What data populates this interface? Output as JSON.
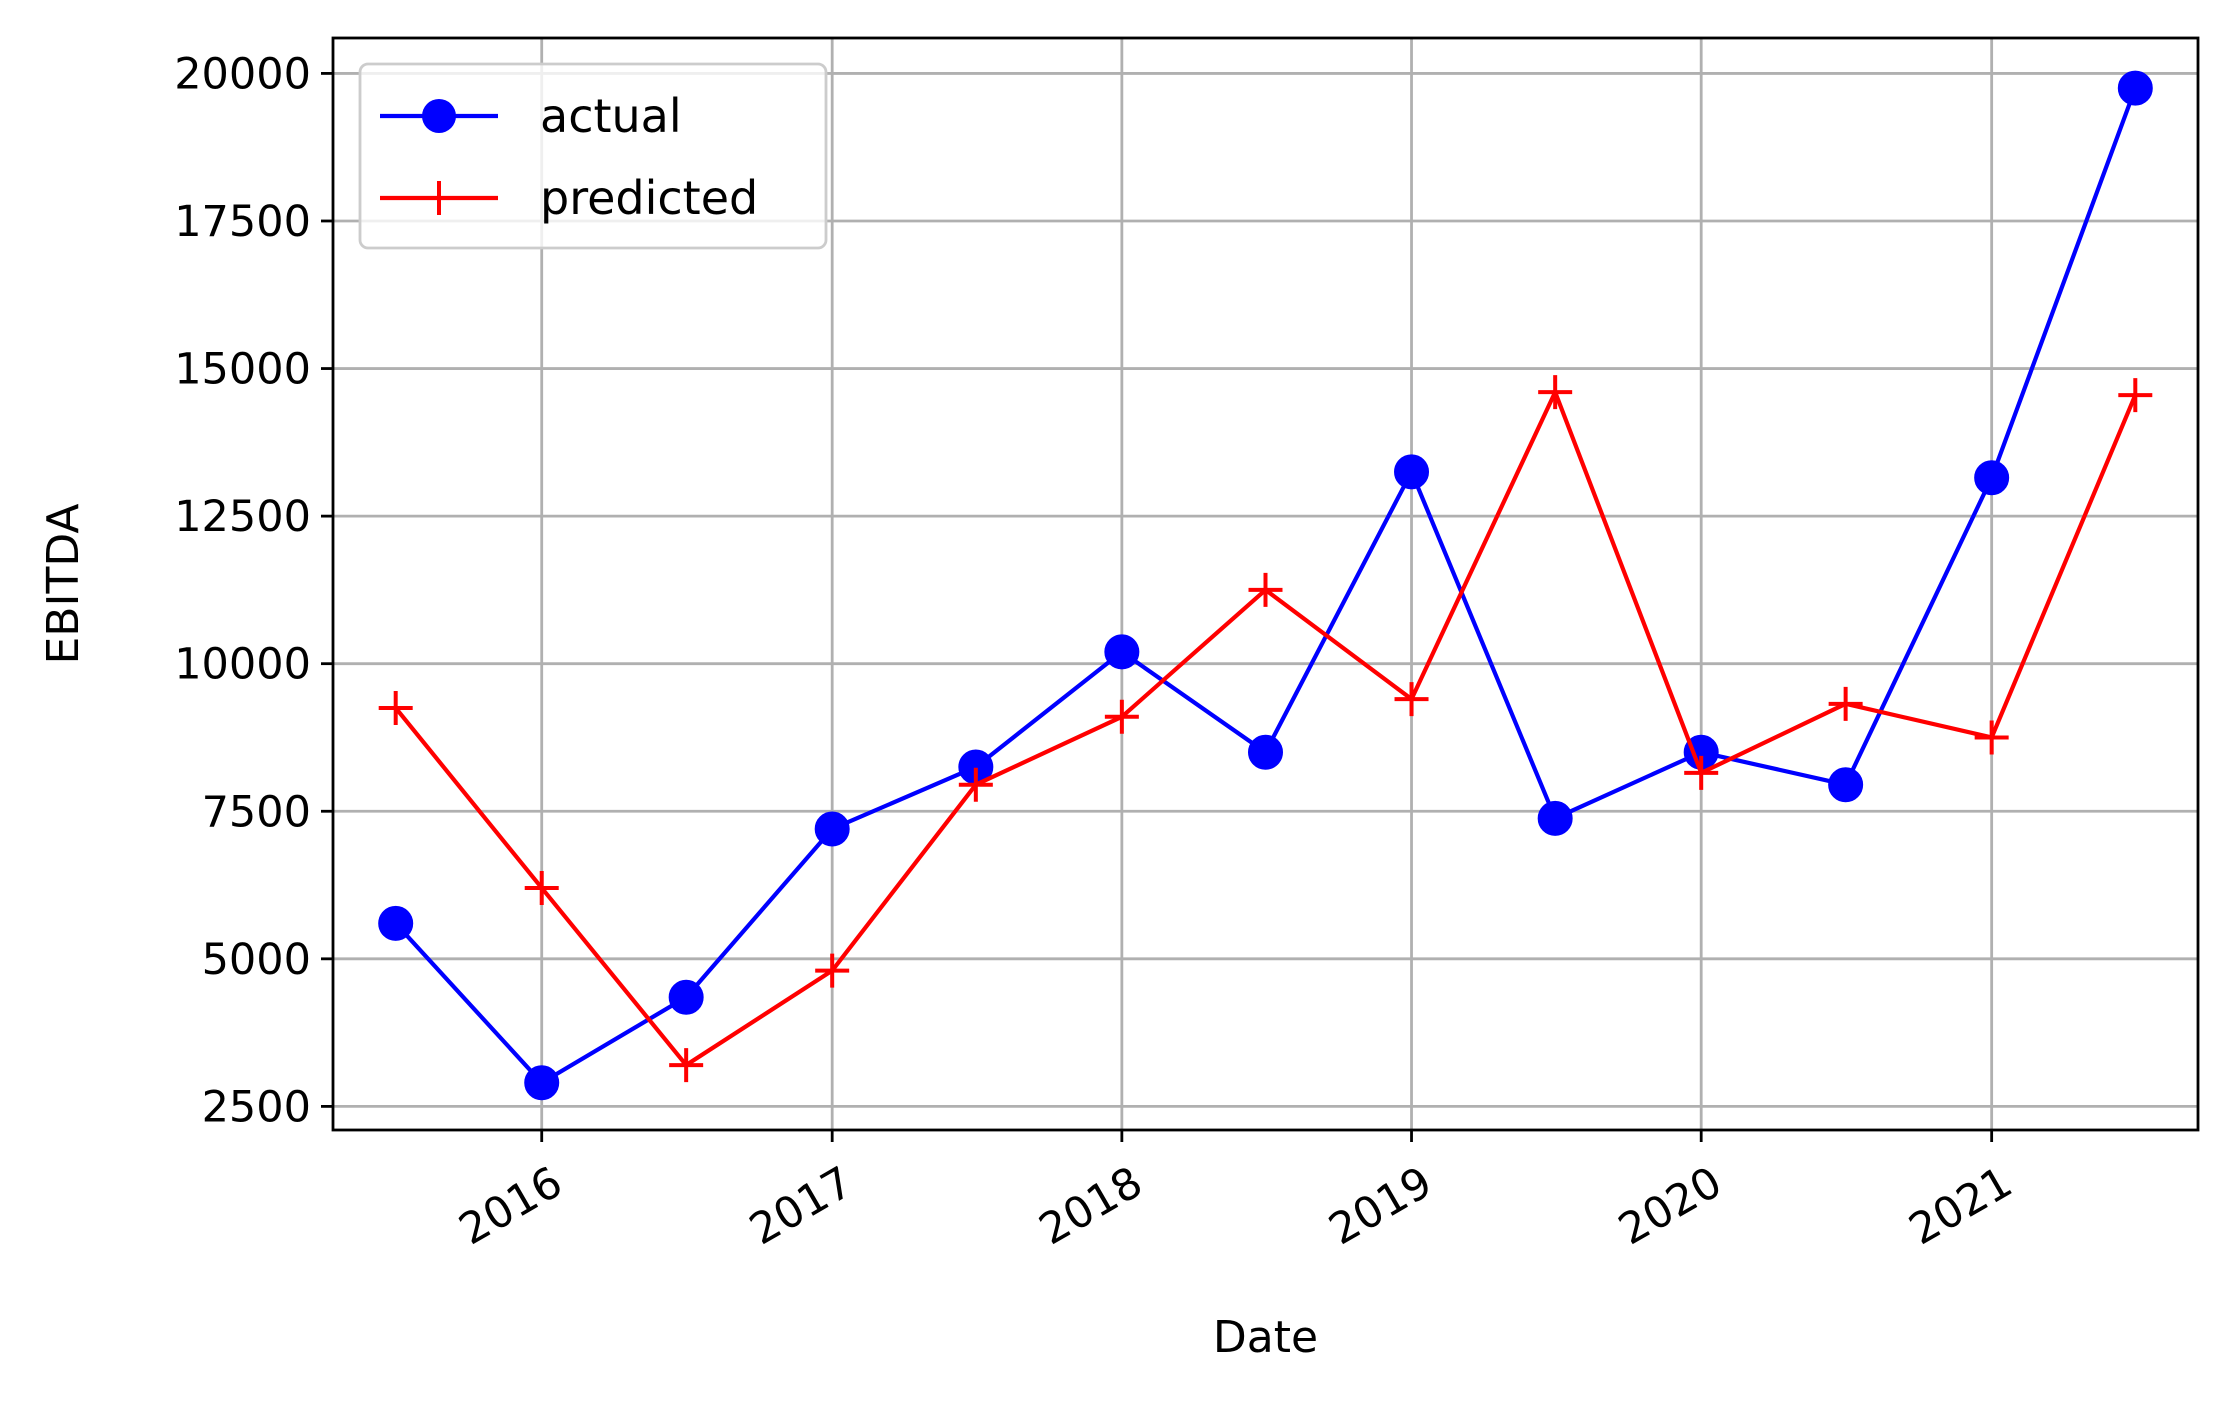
{
  "chart_data": {
    "type": "line",
    "title": "",
    "xlabel": "Date",
    "ylabel": "EBITDA",
    "x_is_date": true,
    "x": [
      "2015-07-01",
      "2016-01-01",
      "2016-07-01",
      "2017-01-01",
      "2017-07-01",
      "2018-01-01",
      "2018-07-01",
      "2019-01-01",
      "2019-07-01",
      "2020-01-01",
      "2020-07-01",
      "2021-01-01",
      "2021-07-01"
    ],
    "xlim": [
      "2015-04-13",
      "2021-09-18"
    ],
    "ylim": [
      2100,
      20600
    ],
    "x_ticks": [
      {
        "date": "2016-01-01",
        "label": "2016"
      },
      {
        "date": "2017-01-01",
        "label": "2017"
      },
      {
        "date": "2018-01-01",
        "label": "2018"
      },
      {
        "date": "2019-01-01",
        "label": "2019"
      },
      {
        "date": "2020-01-01",
        "label": "2020"
      },
      {
        "date": "2021-01-01",
        "label": "2021"
      }
    ],
    "y_ticks": [
      {
        "value": 2500,
        "label": "2500"
      },
      {
        "value": 5000,
        "label": "5000"
      },
      {
        "value": 7500,
        "label": "7500"
      },
      {
        "value": 10000,
        "label": "10000"
      },
      {
        "value": 12500,
        "label": "12500"
      },
      {
        "value": 15000,
        "label": "15000"
      },
      {
        "value": 17500,
        "label": "17500"
      },
      {
        "value": 20000,
        "label": "20000"
      }
    ],
    "grid": true,
    "legend_position": "top-left",
    "series": [
      {
        "name": "actual",
        "color": "#0000ff",
        "marker": "circle",
        "values": [
          5600,
          2900,
          4350,
          7200,
          8250,
          10200,
          8500,
          13250,
          7380,
          8500,
          7950,
          13150,
          19750
        ]
      },
      {
        "name": "predicted",
        "color": "#ff0000",
        "marker": "plus",
        "values": [
          9250,
          6200,
          3200,
          4800,
          7950,
          9100,
          11250,
          9400,
          14600,
          8150,
          9320,
          8750,
          14550
        ]
      }
    ]
  }
}
